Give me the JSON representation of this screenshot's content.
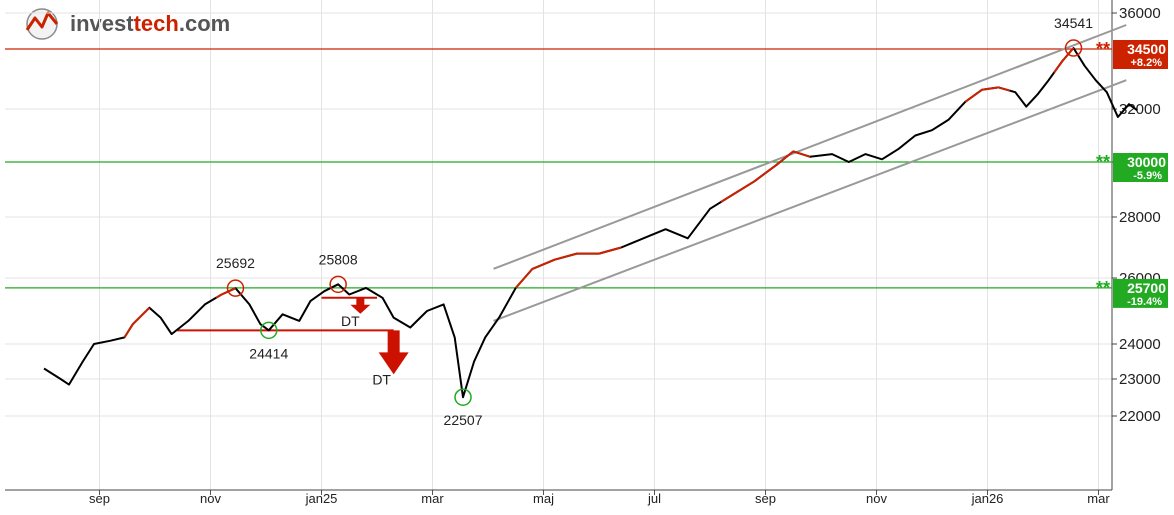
{
  "logo": {
    "part1": "invest",
    "part2": "tech",
    "part3": ".com"
  },
  "colors": {
    "up": "#cc2200",
    "down": "#000000",
    "resistance": "#cc2200",
    "support": "#22aa22",
    "channel": "#999999",
    "dt_arrow": "#cc1100"
  },
  "chart_data": {
    "type": "line",
    "title": "",
    "xlabel": "",
    "ylabel": "",
    "ylim": [
      20800,
      36200
    ],
    "y_ticks": [
      22000,
      23000,
      24000,
      26000,
      28000,
      30000,
      32000,
      36000
    ],
    "x_ticks": [
      {
        "label": "sep",
        "t": 1.0
      },
      {
        "label": "nov",
        "t": 3.0
      },
      {
        "label": "jan25",
        "t": 5.0
      },
      {
        "label": "mar",
        "t": 7.0
      },
      {
        "label": "maj",
        "t": 9.0
      },
      {
        "label": "jul",
        "t": 11.0
      },
      {
        "label": "sep",
        "t": 13.0
      },
      {
        "label": "nov",
        "t": 15.0
      },
      {
        "label": "jan26",
        "t": 17.0
      },
      {
        "label": "mar",
        "t": 19.0
      }
    ],
    "series": [
      {
        "points": [
          [
            0.0,
            23300
          ],
          [
            0.3,
            23000
          ],
          [
            0.45,
            22850
          ],
          [
            0.7,
            23500
          ],
          [
            0.9,
            24000
          ],
          [
            1.2,
            24100
          ],
          [
            1.45,
            24200
          ],
          [
            1.6,
            24600
          ],
          [
            1.9,
            25100
          ],
          [
            2.1,
            24800
          ],
          [
            2.3,
            24300
          ],
          [
            2.6,
            24700
          ],
          [
            2.9,
            25200
          ],
          [
            3.2,
            25500
          ],
          [
            3.45,
            25692
          ],
          [
            3.7,
            25200
          ],
          [
            3.9,
            24600
          ],
          [
            4.05,
            24414
          ],
          [
            4.3,
            24900
          ],
          [
            4.6,
            24700
          ],
          [
            4.8,
            25300
          ],
          [
            5.05,
            25600
          ],
          [
            5.3,
            25808
          ],
          [
            5.5,
            25500
          ],
          [
            5.8,
            25700
          ],
          [
            6.1,
            25400
          ],
          [
            6.3,
            24800
          ],
          [
            6.6,
            24500
          ],
          [
            6.9,
            25000
          ],
          [
            7.2,
            25200
          ],
          [
            7.4,
            24200
          ],
          [
            7.55,
            22507
          ],
          [
            7.75,
            23500
          ],
          [
            7.95,
            24200
          ],
          [
            8.2,
            24800
          ],
          [
            8.5,
            25700
          ],
          [
            8.8,
            26300
          ],
          [
            9.2,
            26600
          ],
          [
            9.6,
            26800
          ],
          [
            10.0,
            26800
          ],
          [
            10.4,
            27000
          ],
          [
            10.8,
            27300
          ],
          [
            11.2,
            27600
          ],
          [
            11.6,
            27300
          ],
          [
            12.0,
            28300
          ],
          [
            12.4,
            28800
          ],
          [
            12.8,
            29300
          ],
          [
            13.2,
            29900
          ],
          [
            13.5,
            30400
          ],
          [
            13.8,
            30200
          ],
          [
            14.2,
            30300
          ],
          [
            14.5,
            30000
          ],
          [
            14.8,
            30300
          ],
          [
            15.1,
            30100
          ],
          [
            15.4,
            30500
          ],
          [
            15.7,
            31000
          ],
          [
            16.0,
            31200
          ],
          [
            16.3,
            31600
          ],
          [
            16.6,
            32300
          ],
          [
            16.9,
            32800
          ],
          [
            17.2,
            32900
          ],
          [
            17.5,
            32700
          ],
          [
            17.7,
            32100
          ],
          [
            17.9,
            32600
          ],
          [
            18.1,
            33200
          ],
          [
            18.35,
            34000
          ],
          [
            18.55,
            34541
          ],
          [
            18.75,
            33800
          ],
          [
            18.95,
            33200
          ],
          [
            19.15,
            32700
          ],
          [
            19.35,
            31700
          ],
          [
            19.55,
            32200
          ],
          [
            19.7,
            31950
          ]
        ],
        "up_segments": [
          [
            1.45,
            1.9
          ],
          [
            3.1,
            3.45
          ],
          [
            8.5,
            10.4
          ],
          [
            12.2,
            13.8
          ],
          [
            16.6,
            17.4
          ],
          [
            18.2,
            18.55
          ]
        ]
      }
    ],
    "levels": [
      {
        "kind": "resistance",
        "value": 34500,
        "label": "34500",
        "pct": "+8.2%"
      },
      {
        "kind": "support",
        "value": 30000,
        "label": "30000",
        "pct": "-5.9%"
      },
      {
        "kind": "support",
        "value": 25700,
        "label": "25700",
        "pct": "-19.4%"
      }
    ],
    "channel": [
      {
        "from": [
          8.1,
          26300
        ],
        "to": [
          19.5,
          35500
        ]
      },
      {
        "from": [
          8.1,
          24700
        ],
        "to": [
          19.5,
          33200
        ]
      }
    ],
    "neckline_1": {
      "from": [
        2.4,
        24414
      ],
      "to": [
        6.3,
        24414
      ]
    },
    "neckline_2": {
      "from": [
        5.0,
        25400
      ],
      "to": [
        6.0,
        25400
      ]
    },
    "extremes": [
      {
        "kind": "max",
        "t": 3.45,
        "v": 25692,
        "label": "25692"
      },
      {
        "kind": "min",
        "t": 4.05,
        "v": 24414,
        "label": "24414"
      },
      {
        "kind": "max",
        "t": 5.3,
        "v": 25808,
        "label": "25808"
      },
      {
        "kind": "min",
        "t": 7.55,
        "v": 22507,
        "label": "22507"
      },
      {
        "kind": "max",
        "t": 18.55,
        "v": 34541,
        "label": "34541"
      }
    ],
    "dt_signals": [
      {
        "label": "DT",
        "t": 5.7,
        "size": "small"
      },
      {
        "label": "DT",
        "t": 6.3,
        "size": "large"
      }
    ]
  }
}
